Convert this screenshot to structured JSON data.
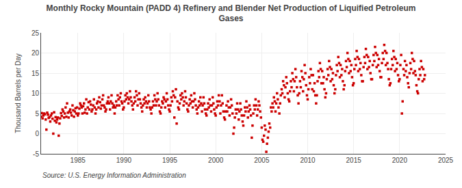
{
  "chart_data": {
    "type": "scatter",
    "title": "Monthly Rocky Mountain (PADD 4) Refinery and Blender Net Production of Liquified Petroleum\nGases",
    "ylabel": "Thousand Barrels per Day",
    "annotations": [
      "Source: U.S. Energy Information Administration"
    ],
    "color": "#cc0000",
    "marker": "square",
    "grid": true,
    "xlim": [
      1981,
      2025
    ],
    "ylim": [
      -5,
      25
    ],
    "xticks": [
      1985,
      1990,
      1995,
      2000,
      2005,
      2010,
      2015,
      2020,
      2025
    ],
    "yticks": [
      -5,
      0,
      5,
      10,
      15,
      20,
      25
    ],
    "x": [
      1981.0,
      1981.08,
      1981.17,
      1981.25,
      1981.33,
      1981.42,
      1981.5,
      1981.58,
      1981.67,
      1981.75,
      1981.83,
      1981.92,
      1982.0,
      1982.08,
      1982.17,
      1982.25,
      1982.33,
      1982.42,
      1982.5,
      1982.58,
      1982.67,
      1982.75,
      1982.83,
      1982.92,
      1983.0,
      1983.08,
      1983.17,
      1983.25,
      1983.33,
      1983.42,
      1983.5,
      1983.58,
      1983.67,
      1983.75,
      1983.83,
      1983.92,
      1984.0,
      1984.08,
      1984.17,
      1984.25,
      1984.33,
      1984.42,
      1984.5,
      1984.58,
      1984.67,
      1984.75,
      1984.83,
      1984.92,
      1985.0,
      1985.08,
      1985.17,
      1985.25,
      1985.33,
      1985.42,
      1985.5,
      1985.58,
      1985.67,
      1985.75,
      1985.83,
      1985.92,
      1986.0,
      1986.08,
      1986.17,
      1986.25,
      1986.33,
      1986.42,
      1986.5,
      1986.58,
      1986.67,
      1986.75,
      1986.83,
      1986.92,
      1987.0,
      1987.08,
      1987.17,
      1987.25,
      1987.33,
      1987.42,
      1987.5,
      1987.58,
      1987.67,
      1987.75,
      1987.83,
      1987.92,
      1988.0,
      1988.08,
      1988.17,
      1988.25,
      1988.33,
      1988.42,
      1988.5,
      1988.58,
      1988.67,
      1988.75,
      1988.83,
      1988.92,
      1989.0,
      1989.08,
      1989.17,
      1989.25,
      1989.33,
      1989.42,
      1989.5,
      1989.58,
      1989.67,
      1989.75,
      1989.83,
      1989.92,
      1990.0,
      1990.08,
      1990.17,
      1990.25,
      1990.33,
      1990.42,
      1990.5,
      1990.58,
      1990.67,
      1990.75,
      1990.83,
      1990.92,
      1991.0,
      1991.08,
      1991.17,
      1991.25,
      1991.33,
      1991.42,
      1991.5,
      1991.58,
      1991.67,
      1991.75,
      1991.83,
      1991.92,
      1992.0,
      1992.08,
      1992.17,
      1992.25,
      1992.33,
      1992.42,
      1992.5,
      1992.58,
      1992.67,
      1992.75,
      1992.83,
      1992.92,
      1993.0,
      1993.08,
      1993.17,
      1993.25,
      1993.33,
      1993.42,
      1993.5,
      1993.58,
      1993.67,
      1993.75,
      1993.83,
      1993.92,
      1994.0,
      1994.08,
      1994.17,
      1994.25,
      1994.33,
      1994.42,
      1994.5,
      1994.58,
      1994.67,
      1994.75,
      1994.83,
      1994.92,
      1995.0,
      1995.08,
      1995.17,
      1995.25,
      1995.33,
      1995.42,
      1995.5,
      1995.58,
      1995.67,
      1995.75,
      1995.83,
      1995.92,
      1996.0,
      1996.08,
      1996.17,
      1996.25,
      1996.33,
      1996.42,
      1996.5,
      1996.58,
      1996.67,
      1996.75,
      1996.83,
      1996.92,
      1997.0,
      1997.08,
      1997.17,
      1997.25,
      1997.33,
      1997.42,
      1997.5,
      1997.58,
      1997.67,
      1997.75,
      1997.83,
      1997.92,
      1998.0,
      1998.08,
      1998.17,
      1998.25,
      1998.33,
      1998.42,
      1998.5,
      1998.58,
      1998.67,
      1998.75,
      1998.83,
      1998.92,
      1999.0,
      1999.08,
      1999.17,
      1999.25,
      1999.33,
      1999.42,
      1999.5,
      1999.58,
      1999.67,
      1999.75,
      1999.83,
      1999.92,
      2000.0,
      2000.08,
      2000.17,
      2000.25,
      2000.33,
      2000.42,
      2000.5,
      2000.58,
      2000.67,
      2000.75,
      2000.83,
      2000.92,
      2001.0,
      2001.08,
      2001.17,
      2001.25,
      2001.33,
      2001.42,
      2001.5,
      2001.58,
      2001.67,
      2001.75,
      2001.83,
      2001.92,
      2002.0,
      2002.08,
      2002.17,
      2002.25,
      2002.33,
      2002.42,
      2002.5,
      2002.58,
      2002.67,
      2002.75,
      2002.83,
      2002.92,
      2003.0,
      2003.08,
      2003.17,
      2003.25,
      2003.33,
      2003.42,
      2003.5,
      2003.58,
      2003.67,
      2003.75,
      2003.83,
      2003.92,
      2004.0,
      2004.08,
      2004.17,
      2004.25,
      2004.33,
      2004.42,
      2004.5,
      2004.58,
      2004.67,
      2004.75,
      2004.83,
      2004.92,
      2005.0,
      2005.08,
      2005.17,
      2005.25,
      2005.33,
      2005.42,
      2005.5,
      2005.58,
      2005.67,
      2005.75,
      2005.83,
      2005.92,
      2006.0,
      2006.08,
      2006.17,
      2006.25,
      2006.33,
      2006.42,
      2006.5,
      2006.58,
      2006.67,
      2006.75,
      2006.83,
      2006.92,
      2007.0,
      2007.08,
      2007.17,
      2007.25,
      2007.33,
      2007.42,
      2007.5,
      2007.58,
      2007.67,
      2007.75,
      2007.83,
      2007.92,
      2008.0,
      2008.08,
      2008.17,
      2008.25,
      2008.33,
      2008.42,
      2008.5,
      2008.58,
      2008.67,
      2008.75,
      2008.83,
      2008.92,
      2009.0,
      2009.08,
      2009.17,
      2009.25,
      2009.33,
      2009.42,
      2009.5,
      2009.58,
      2009.67,
      2009.75,
      2009.83,
      2009.92,
      2010.0,
      2010.08,
      2010.17,
      2010.25,
      2010.33,
      2010.42,
      2010.5,
      2010.58,
      2010.67,
      2010.75,
      2010.83,
      2010.92,
      2011.0,
      2011.08,
      2011.17,
      2011.25,
      2011.33,
      2011.42,
      2011.5,
      2011.58,
      2011.67,
      2011.75,
      2011.83,
      2011.92,
      2012.0,
      2012.08,
      2012.17,
      2012.25,
      2012.33,
      2012.42,
      2012.5,
      2012.58,
      2012.67,
      2012.75,
      2012.83,
      2012.92,
      2013.0,
      2013.08,
      2013.17,
      2013.25,
      2013.33,
      2013.42,
      2013.5,
      2013.58,
      2013.67,
      2013.75,
      2013.83,
      2013.92,
      2014.0,
      2014.08,
      2014.17,
      2014.25,
      2014.33,
      2014.42,
      2014.5,
      2014.58,
      2014.67,
      2014.75,
      2014.83,
      2014.92,
      2015.0,
      2015.08,
      2015.17,
      2015.25,
      2015.33,
      2015.42,
      2015.5,
      2015.58,
      2015.67,
      2015.75,
      2015.83,
      2015.92,
      2016.0,
      2016.08,
      2016.17,
      2016.25,
      2016.33,
      2016.42,
      2016.5,
      2016.58,
      2016.67,
      2016.75,
      2016.83,
      2016.92,
      2017.0,
      2017.08,
      2017.17,
      2017.25,
      2017.33,
      2017.42,
      2017.5,
      2017.58,
      2017.67,
      2017.75,
      2017.83,
      2017.92,
      2018.0,
      2018.08,
      2018.17,
      2018.25,
      2018.33,
      2018.42,
      2018.5,
      2018.58,
      2018.67,
      2018.75,
      2018.83,
      2018.92,
      2019.0,
      2019.08,
      2019.17,
      2019.25,
      2019.33,
      2019.42,
      2019.5,
      2019.58,
      2019.67,
      2019.75,
      2019.83,
      2019.92,
      2020.0,
      2020.08,
      2020.17,
      2020.25,
      2020.33,
      2020.42,
      2020.5,
      2020.58,
      2020.67,
      2020.75,
      2020.83,
      2020.92,
      2021.0,
      2021.08,
      2021.17,
      2021.25,
      2021.33,
      2021.42,
      2021.5,
      2021.58,
      2021.67,
      2021.75,
      2021.83,
      2021.92,
      2022.0,
      2022.08,
      2022.17,
      2022.25,
      2022.33,
      2022.42,
      2022.5,
      2022.58,
      2022.67,
      2022.75
    ],
    "values": [
      4.2,
      5.1,
      3.8,
      4.5,
      5.0,
      4.8,
      3.5,
      1.0,
      5.2,
      4.7,
      3.9,
      4.1,
      3.0,
      4.5,
      5.0,
      3.7,
      0.0,
      5.3,
      3.2,
      4.1,
      2.8,
      3.5,
      4.0,
      -0.5,
      2.5,
      3.8,
      5.1,
      4.4,
      6.0,
      5.5,
      4.0,
      5.0,
      6.5,
      4.2,
      7.5,
      5.2,
      4.0,
      5.5,
      6.0,
      5.2,
      4.5,
      7.0,
      5.8,
      4.2,
      5.5,
      6.3,
      5.0,
      6.5,
      4.5,
      5.0,
      6.2,
      7.5,
      7.0,
      6.5,
      5.0,
      6.8,
      7.5,
      5.2,
      6.0,
      8.5,
      5.0,
      6.5,
      7.8,
      6.0,
      8.0,
      7.2,
      5.5,
      6.0,
      7.0,
      8.5,
      6.5,
      5.0,
      6.0,
      7.5,
      8.0,
      6.5,
      9.0,
      7.8,
      6.2,
      7.0,
      8.5,
      9.5,
      7.0,
      6.5,
      5.5,
      6.0,
      7.5,
      8.0,
      9.0,
      7.5,
      6.0,
      8.0,
      9.5,
      7.5,
      6.5,
      7.0,
      5.0,
      6.5,
      8.0,
      7.0,
      9.5,
      8.5,
      7.0,
      9.0,
      10.0,
      8.0,
      7.5,
      6.0,
      6.5,
      8.0,
      9.5,
      8.5,
      10.0,
      9.0,
      7.5,
      8.5,
      10.5,
      9.0,
      8.0,
      7.0,
      6.0,
      7.5,
      9.0,
      8.0,
      10.5,
      9.5,
      7.0,
      8.5,
      10.0,
      8.5,
      7.5,
      6.5,
      5.5,
      7.0,
      8.5,
      7.5,
      9.0,
      8.0,
      6.5,
      7.5,
      9.5,
      8.0,
      6.5,
      6.0,
      5.0,
      6.5,
      8.0,
      7.0,
      9.5,
      8.5,
      7.0,
      8.0,
      10.0,
      8.5,
      7.0,
      5.5,
      5.0,
      6.5,
      8.0,
      7.5,
      9.0,
      8.5,
      6.5,
      8.0,
      10.0,
      8.5,
      7.0,
      6.0,
      5.5,
      7.0,
      9.0,
      8.0,
      10.5,
      9.5,
      4.0,
      9.0,
      11.0,
      2.5,
      8.0,
      6.5,
      6.0,
      7.5,
      9.5,
      8.5,
      10.0,
      9.0,
      7.0,
      8.0,
      10.5,
      9.0,
      7.5,
      6.0,
      5.5,
      7.0,
      8.5,
      7.5,
      9.5,
      8.0,
      6.5,
      8.0,
      10.0,
      8.5,
      7.0,
      6.0,
      5.0,
      6.5,
      8.0,
      7.0,
      9.0,
      7.5,
      5.5,
      7.0,
      9.0,
      7.5,
      6.0,
      5.0,
      4.5,
      6.0,
      7.5,
      6.5,
      8.5,
      7.0,
      5.5,
      7.0,
      9.0,
      7.5,
      6.0,
      5.0,
      4.5,
      6.5,
      8.0,
      7.0,
      9.5,
      8.0,
      5.0,
      7.0,
      9.5,
      7.5,
      5.5,
      4.0,
      3.5,
      5.5,
      7.0,
      5.5,
      8.0,
      6.5,
      4.5,
      6.5,
      8.5,
      7.0,
      5.0,
      0.0,
      1.5,
      4.0,
      6.0,
      5.0,
      7.5,
      6.0,
      3.5,
      5.5,
      7.5,
      6.0,
      4.5,
      3.0,
      2.0,
      4.5,
      6.5,
      5.5,
      8.0,
      6.5,
      4.0,
      5.5,
      7.0,
      6.0,
      4.5,
      -1.0,
      2.0,
      5.0,
      7.0,
      6.0,
      8.5,
      7.0,
      4.5,
      6.0,
      8.0,
      7.0,
      5.5,
      4.0,
      1.5,
      -1.5,
      -2.0,
      -0.5,
      2.0,
      1.0,
      -4.5,
      -2.5,
      -1.0,
      0.5,
      2.5,
      1.5,
      6.5,
      5.5,
      7.5,
      6.5,
      9.0,
      8.0,
      5.5,
      7.5,
      10.0,
      8.5,
      6.5,
      5.0,
      7.5,
      9.5,
      11.0,
      10.0,
      13.0,
      12.0,
      9.0,
      11.5,
      14.0,
      12.5,
      10.0,
      8.5,
      8.0,
      10.5,
      13.0,
      11.5,
      15.0,
      13.5,
      10.5,
      13.0,
      16.0,
      14.0,
      11.5,
      9.5,
      7.5,
      10.0,
      13.0,
      11.5,
      15.5,
      14.0,
      10.5,
      13.5,
      17.0,
      15.0,
      12.0,
      9.5,
      8.5,
      11.0,
      14.0,
      12.5,
      16.0,
      14.5,
      11.0,
      14.5,
      10.5,
      12.5,
      9.5,
      7.5,
      9.5,
      13.0,
      15.5,
      14.0,
      17.5,
      16.0,
      12.5,
      15.5,
      12.5,
      14.0,
      11.0,
      9.0,
      10.0,
      13.5,
      16.0,
      14.5,
      18.0,
      16.5,
      13.0,
      16.0,
      13.5,
      15.0,
      12.0,
      10.0,
      11.0,
      14.5,
      17.0,
      15.5,
      19.0,
      17.5,
      14.0,
      17.0,
      14.5,
      16.0,
      13.0,
      11.0,
      12.0,
      15.5,
      18.0,
      16.5,
      20.0,
      18.5,
      15.0,
      18.0,
      15.5,
      17.0,
      14.0,
      12.0,
      12.5,
      16.0,
      18.5,
      17.0,
      20.5,
      19.0,
      15.5,
      18.5,
      16.0,
      17.5,
      14.5,
      13.0,
      13.0,
      16.5,
      19.0,
      17.5,
      21.0,
      19.5,
      16.0,
      19.0,
      16.5,
      18.0,
      15.0,
      13.5,
      13.5,
      17.0,
      19.5,
      18.0,
      21.5,
      20.0,
      16.5,
      19.5,
      17.0,
      18.5,
      15.5,
      14.0,
      14.0,
      17.5,
      20.0,
      18.5,
      22.0,
      20.5,
      17.0,
      20.0,
      17.5,
      16.0,
      13.5,
      12.0,
      12.5,
      16.0,
      18.5,
      17.0,
      20.5,
      19.0,
      15.5,
      18.5,
      16.0,
      17.5,
      14.5,
      13.0,
      13.5,
      17.0,
      19.5,
      5.0,
      8.0,
      16.0,
      14.5,
      18.0,
      15.5,
      17.0,
      14.0,
      12.5,
      11.5,
      15.0,
      17.5,
      16.0,
      20.0,
      18.5,
      15.0,
      18.0,
      15.5,
      14.5,
      12.0,
      10.5,
      10.0,
      13.5,
      16.0,
      14.5,
      18.0,
      16.5,
      13.0,
      16.0,
      13.5,
      14.5
    ]
  }
}
